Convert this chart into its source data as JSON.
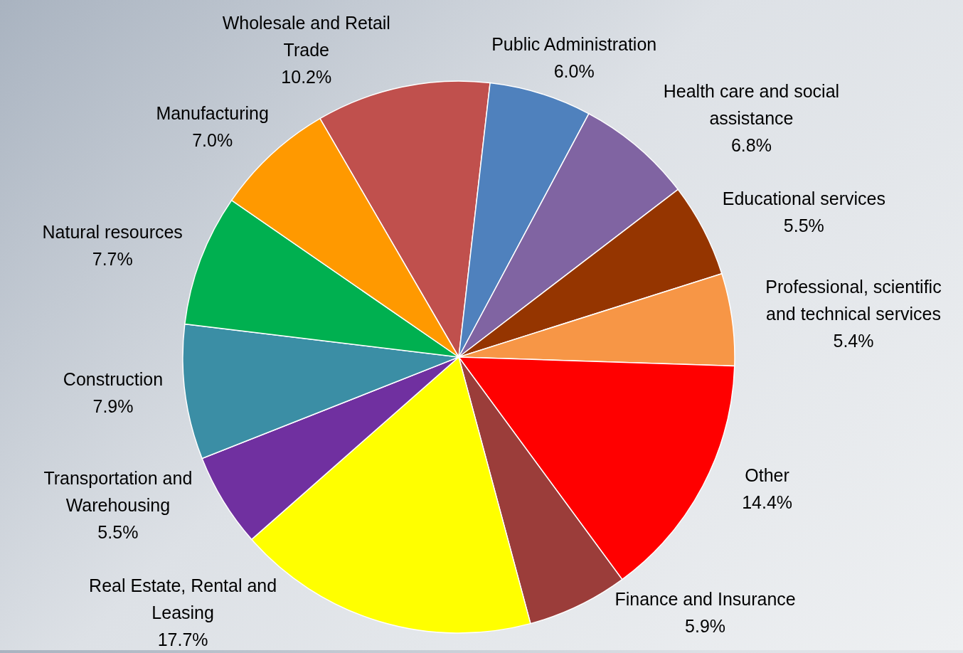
{
  "chart_data": {
    "type": "pie",
    "categories": [
      "Wholesale and Retail Trade",
      "Public Administration",
      "Health care and social assistance",
      "Educational services",
      "Professional, scientific and technical services",
      "Other",
      "Finance and Insurance",
      "Real Estate, Rental and Leasing",
      "Transportation and Warehousing",
      "Construction",
      "Natural resources",
      "Manufacturing"
    ],
    "values": [
      10.2,
      6.0,
      6.8,
      5.5,
      5.4,
      14.4,
      5.9,
      17.7,
      5.5,
      7.9,
      7.7,
      7.0
    ],
    "value_labels": [
      "10.2%",
      "6.0%",
      "6.8%",
      "5.5%",
      "5.4%",
      "14.4%",
      "5.9%",
      "17.7%",
      "5.5%",
      "7.9%",
      "7.7%",
      "7.0%"
    ],
    "colors": [
      "#c0504d",
      "#4f81bd",
      "#8064a2",
      "#953500",
      "#f79646",
      "#ff0000",
      "#9b3d3a",
      "#ffff00",
      "#7030a0",
      "#3b8ea5",
      "#00b050",
      "#ff9900"
    ]
  }
}
